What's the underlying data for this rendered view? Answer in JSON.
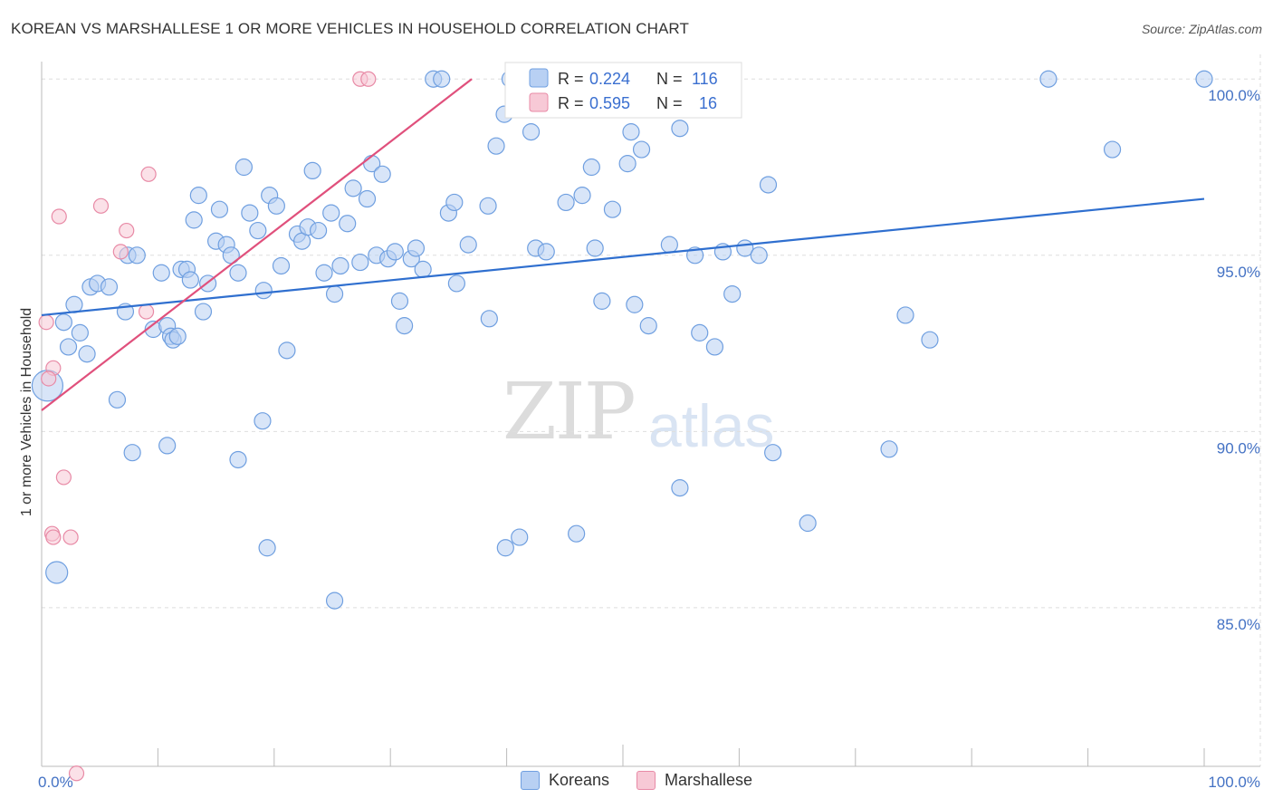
{
  "title": "KOREAN VS MARSHALLESE 1 OR MORE VEHICLES IN HOUSEHOLD CORRELATION CHART",
  "source": "Source: ZipAtlas.com",
  "watermark": {
    "zip": "ZIP",
    "atlas": "atlas"
  },
  "colors": {
    "korean": "#6f9fe0",
    "korean_fill": "#b8d0f3",
    "korean_line": "#2f6fcf",
    "marshallese": "#e88aa6",
    "marshallese_fill": "#f7c9d6",
    "marshallese_line": "#e0507c"
  },
  "legend": {
    "korean": {
      "r_label": "R = ",
      "r_value": "0.224",
      "n_label": "N = ",
      "n_value": "116"
    },
    "marshallese": {
      "r_label": "R = ",
      "r_value": "0.595",
      "n_label": "N = ",
      "n_value": "16"
    }
  },
  "bottom_legend": {
    "korean": "Koreans",
    "marshallese": "Marshallese"
  },
  "chart_data": {
    "type": "scatter",
    "title": "KOREAN VS MARSHALLESE 1 OR MORE VEHICLES IN HOUSEHOLD CORRELATION CHART",
    "xlabel": "",
    "ylabel": "1 or more Vehicles in Household",
    "xlim": [
      0,
      100
    ],
    "ylim": [
      80.5,
      100.7
    ],
    "x_tick_labels": [
      {
        "value": 0,
        "label": "0.0%"
      },
      {
        "value": 100,
        "label": "100.0%"
      }
    ],
    "y_ticks": [
      {
        "value": 100,
        "label": "100.0%"
      },
      {
        "value": 95,
        "label": "95.0%"
      },
      {
        "value": 90,
        "label": "90.0%"
      },
      {
        "value": 85,
        "label": "85.0%"
      }
    ],
    "series": [
      {
        "name": "Koreans",
        "r": 0.224,
        "n": 116,
        "trend": {
          "x": [
            0,
            100
          ],
          "y": [
            93.3,
            96.6
          ]
        },
        "points": [
          [
            0.5,
            91.3,
            "L"
          ],
          [
            1.3,
            86.0,
            "M"
          ],
          [
            1.9,
            93.1,
            "S"
          ],
          [
            2.3,
            92.4,
            "S"
          ],
          [
            2.8,
            93.6,
            "S"
          ],
          [
            3.3,
            92.8,
            "S"
          ],
          [
            3.9,
            92.2,
            "S"
          ],
          [
            4.2,
            94.1,
            "S"
          ],
          [
            4.8,
            94.2,
            "S"
          ],
          [
            5.8,
            94.1,
            "S"
          ],
          [
            6.5,
            90.9,
            "S"
          ],
          [
            7.2,
            93.4,
            "S"
          ],
          [
            7.4,
            95.0,
            "S"
          ],
          [
            8.2,
            95.0,
            "S"
          ],
          [
            7.8,
            89.4,
            "S"
          ],
          [
            9.6,
            92.9,
            "S"
          ],
          [
            10.3,
            94.5,
            "S"
          ],
          [
            10.8,
            93.0,
            "S"
          ],
          [
            11.1,
            92.7,
            "S"
          ],
          [
            11.3,
            92.6,
            "S"
          ],
          [
            11.7,
            92.7,
            "S"
          ],
          [
            12.0,
            94.6,
            "S"
          ],
          [
            12.5,
            94.6,
            "S"
          ],
          [
            12.8,
            94.3,
            "S"
          ],
          [
            13.1,
            96.0,
            "S"
          ],
          [
            13.5,
            96.7,
            "S"
          ],
          [
            13.9,
            93.4,
            "S"
          ],
          [
            14.3,
            94.2,
            "S"
          ],
          [
            15.0,
            95.4,
            "S"
          ],
          [
            15.3,
            96.3,
            "S"
          ],
          [
            15.9,
            95.3,
            "S"
          ],
          [
            16.3,
            95.0,
            "S"
          ],
          [
            16.9,
            94.5,
            "S"
          ],
          [
            17.4,
            97.5,
            "S"
          ],
          [
            17.9,
            96.2,
            "S"
          ],
          [
            18.6,
            95.7,
            "S"
          ],
          [
            19.1,
            94.0,
            "S"
          ],
          [
            19.6,
            96.7,
            "S"
          ],
          [
            20.2,
            96.4,
            "S"
          ],
          [
            20.6,
            94.7,
            "S"
          ],
          [
            21.1,
            92.3,
            "S"
          ],
          [
            22.0,
            95.6,
            "S"
          ],
          [
            22.4,
            95.4,
            "S"
          ],
          [
            22.9,
            95.8,
            "S"
          ],
          [
            23.8,
            95.7,
            "S"
          ],
          [
            23.3,
            97.4,
            "S"
          ],
          [
            24.3,
            94.5,
            "S"
          ],
          [
            24.9,
            96.2,
            "S"
          ],
          [
            25.2,
            93.9,
            "S"
          ],
          [
            25.7,
            94.7,
            "S"
          ],
          [
            26.3,
            95.9,
            "S"
          ],
          [
            26.8,
            96.9,
            "S"
          ],
          [
            27.4,
            94.8,
            "S"
          ],
          [
            28.0,
            96.6,
            "S"
          ],
          [
            28.4,
            97.6,
            "S"
          ],
          [
            28.8,
            95.0,
            "S"
          ],
          [
            29.3,
            97.3,
            "S"
          ],
          [
            29.8,
            94.9,
            "S"
          ],
          [
            30.4,
            95.1,
            "S"
          ],
          [
            30.8,
            93.7,
            "S"
          ],
          [
            31.2,
            93.0,
            "S"
          ],
          [
            31.8,
            94.9,
            "S"
          ],
          [
            32.2,
            95.2,
            "S"
          ],
          [
            32.8,
            94.6,
            "S"
          ],
          [
            33.7,
            100.0,
            "S"
          ],
          [
            34.4,
            100.0,
            "S"
          ],
          [
            35.0,
            96.2,
            "S"
          ],
          [
            35.5,
            96.5,
            "S"
          ],
          [
            35.7,
            94.2,
            "S"
          ],
          [
            36.7,
            95.3,
            "S"
          ],
          [
            38.4,
            96.4,
            "S"
          ],
          [
            38.5,
            93.2,
            "S"
          ],
          [
            39.1,
            98.1,
            "S"
          ],
          [
            39.8,
            99.0,
            "S"
          ],
          [
            40.3,
            100.0,
            "S"
          ],
          [
            42.1,
            98.5,
            "S"
          ],
          [
            42.5,
            95.2,
            "S"
          ],
          [
            43.4,
            95.1,
            "S"
          ],
          [
            39.9,
            86.7,
            "S"
          ],
          [
            41.1,
            87.0,
            "S"
          ],
          [
            45.1,
            96.5,
            "S"
          ],
          [
            46.5,
            96.7,
            "S"
          ],
          [
            47.3,
            97.5,
            "S"
          ],
          [
            47.6,
            95.2,
            "S"
          ],
          [
            48.2,
            93.7,
            "S"
          ],
          [
            49.1,
            96.3,
            "S"
          ],
          [
            50.4,
            97.6,
            "S"
          ],
          [
            50.7,
            98.5,
            "S"
          ],
          [
            51.0,
            93.6,
            "S"
          ],
          [
            51.6,
            98.0,
            "S"
          ],
          [
            52.2,
            93.0,
            "S"
          ],
          [
            54.0,
            95.3,
            "S"
          ],
          [
            54.9,
            98.6,
            "S"
          ],
          [
            56.2,
            95.0,
            "S"
          ],
          [
            56.6,
            92.8,
            "S"
          ],
          [
            57.9,
            92.4,
            "S"
          ],
          [
            58.6,
            95.1,
            "S"
          ],
          [
            59.4,
            93.9,
            "S"
          ],
          [
            60.5,
            95.2,
            "S"
          ],
          [
            61.7,
            95.0,
            "S"
          ],
          [
            62.5,
            97.0,
            "S"
          ],
          [
            62.9,
            89.4,
            "S"
          ],
          [
            46.0,
            87.1,
            "S"
          ],
          [
            54.9,
            88.4,
            "S"
          ],
          [
            65.9,
            87.4,
            "S"
          ],
          [
            72.9,
            89.5,
            "S"
          ],
          [
            74.3,
            93.3,
            "S"
          ],
          [
            76.4,
            92.6,
            "S"
          ],
          [
            86.6,
            100.0,
            "S"
          ],
          [
            92.1,
            98.0,
            "S"
          ],
          [
            100.0,
            100.0,
            "S"
          ],
          [
            16.9,
            89.2,
            "S"
          ],
          [
            19.4,
            86.7,
            "S"
          ],
          [
            25.2,
            85.2,
            "S"
          ],
          [
            10.8,
            89.6,
            "S"
          ],
          [
            19.0,
            90.3,
            "S"
          ]
        ]
      },
      {
        "name": "Marshallese",
        "r": 0.595,
        "n": 16,
        "trend": {
          "x": [
            0,
            37
          ],
          "y": [
            90.6,
            100.0
          ]
        },
        "points": [
          [
            0.4,
            93.1
          ],
          [
            1.0,
            91.8
          ],
          [
            0.9,
            87.1
          ],
          [
            1.0,
            87.0
          ],
          [
            1.5,
            96.1
          ],
          [
            1.9,
            88.7
          ],
          [
            2.5,
            87.0
          ],
          [
            5.1,
            96.4
          ],
          [
            7.3,
            95.7
          ],
          [
            6.8,
            95.1
          ],
          [
            9.0,
            93.4
          ],
          [
            9.2,
            97.3
          ],
          [
            27.4,
            100.0
          ],
          [
            28.1,
            100.0
          ],
          [
            3.0,
            80.3
          ],
          [
            0.6,
            91.5
          ]
        ]
      }
    ]
  }
}
